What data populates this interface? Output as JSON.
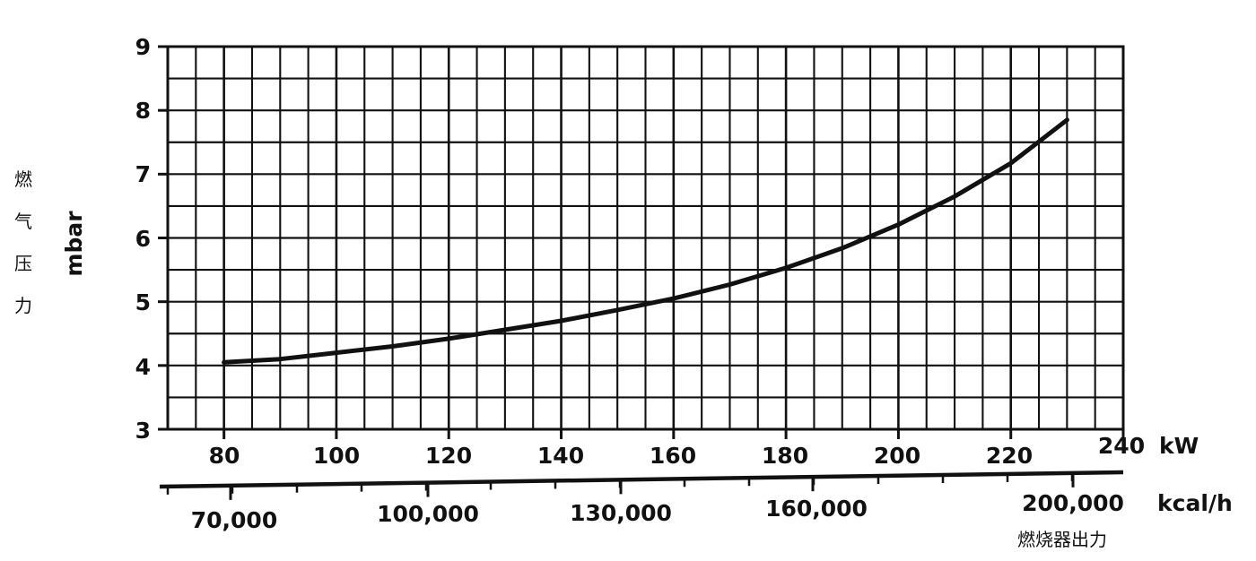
{
  "chart_data": {
    "type": "line",
    "ylabel": "mbar",
    "ylabel_cn": "燃气压力",
    "x_unit": "kW",
    "x2_unit": "kcal/h",
    "xlabel_cn": "燃烧器出力",
    "xlim": [
      70,
      240
    ],
    "ylim": [
      3,
      9
    ],
    "grid": true,
    "y_ticks": [
      "3",
      "4",
      "5",
      "6",
      "7",
      "8",
      "9"
    ],
    "x_ticks": [
      "80",
      "100",
      "120",
      "140",
      "160",
      "180",
      "200",
      "220",
      "240"
    ],
    "x2_ticks": [
      "70,000",
      "100,000",
      "130,000",
      "160,000",
      "200,000"
    ],
    "series": [
      {
        "x": [
          80,
          90,
          100,
          110,
          120,
          130,
          140,
          150,
          160,
          170,
          180,
          190,
          200,
          210,
          220,
          230
        ],
        "y": [
          4.05,
          4.1,
          4.2,
          4.3,
          4.42,
          4.56,
          4.7,
          4.87,
          5.05,
          5.27,
          5.53,
          5.84,
          6.21,
          6.65,
          7.17,
          7.85
        ]
      }
    ]
  }
}
